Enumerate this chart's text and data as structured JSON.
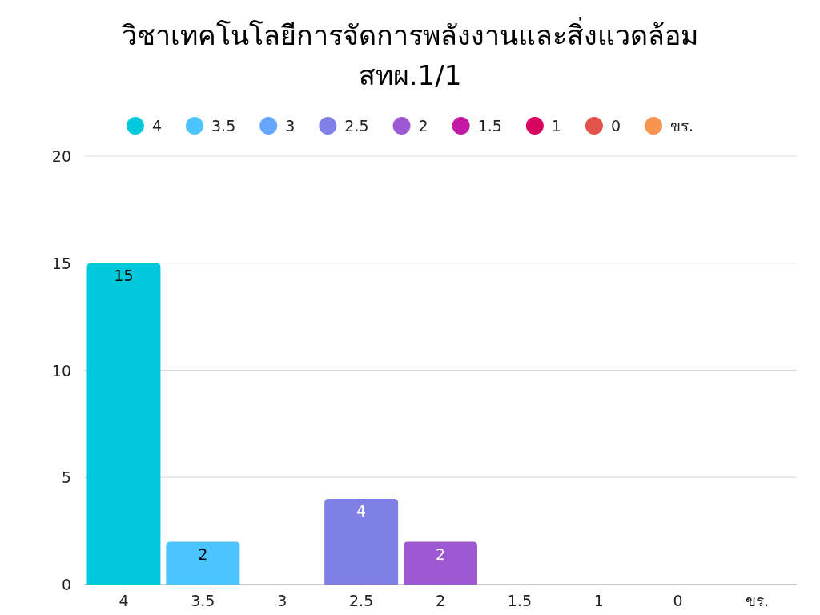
{
  "chart_data": {
    "type": "bar",
    "title": "วิชาเทคโนโลยีการจัดการพลังงานและสิ่งแวดล้อม\nสทผ.1/1",
    "categories": [
      "4",
      "3.5",
      "3",
      "2.5",
      "2",
      "1.5",
      "1",
      "0",
      "ขร."
    ],
    "series": [
      {
        "name": "4",
        "color": "#00c9db",
        "values": [
          15,
          null,
          null,
          null,
          null,
          null,
          null,
          null,
          null
        ],
        "value_labels": [
          "15",
          null,
          null,
          null,
          null,
          null,
          null,
          null,
          null
        ]
      },
      {
        "name": "3.5",
        "color": "#4dc4ff",
        "values": [
          null,
          2,
          null,
          null,
          null,
          null,
          null,
          null,
          null
        ],
        "value_labels": [
          null,
          "2",
          null,
          null,
          null,
          null,
          null,
          null,
          null
        ]
      },
      {
        "name": "3",
        "color": "#66a6ff",
        "values": [
          null,
          null,
          0,
          null,
          null,
          null,
          null,
          null,
          null
        ]
      },
      {
        "name": "2.5",
        "color": "#8080e6",
        "values": [
          null,
          null,
          null,
          4,
          null,
          null,
          null,
          null,
          null
        ],
        "value_labels": [
          null,
          null,
          null,
          "4",
          null,
          null,
          null,
          null,
          null
        ]
      },
      {
        "name": "2",
        "color": "#9c59d1",
        "values": [
          null,
          null,
          null,
          null,
          2,
          null,
          null,
          null,
          null
        ],
        "value_labels": [
          null,
          null,
          null,
          null,
          "2",
          null,
          null,
          null,
          null
        ]
      },
      {
        "name": "1.5",
        "color": "#c21aa6",
        "values": [
          null,
          null,
          null,
          null,
          null,
          0,
          null,
          null,
          null
        ]
      },
      {
        "name": "1",
        "color": "#d6045e",
        "values": [
          null,
          null,
          null,
          null,
          null,
          null,
          0,
          null,
          null
        ]
      },
      {
        "name": "0",
        "color": "#e0524a",
        "values": [
          null,
          null,
          null,
          null,
          null,
          null,
          null,
          0,
          null
        ]
      },
      {
        "name": "ขร.",
        "color": "#f99551",
        "values": [
          null,
          null,
          null,
          null,
          null,
          null,
          null,
          null,
          0
        ]
      }
    ],
    "ylim": [
      0,
      20
    ],
    "yticks": [
      0,
      5,
      10,
      15,
      20
    ],
    "grid": "y",
    "legend": "top"
  }
}
